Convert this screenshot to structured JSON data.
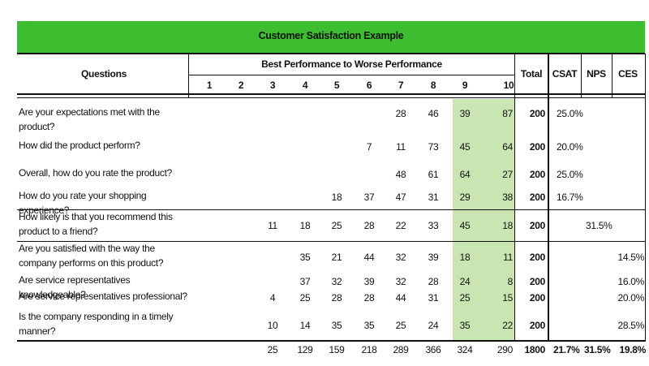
{
  "title": "Customer Satisfaction Example",
  "headers": {
    "questions": "Questions",
    "scale": "Best Performance to Worse Performance",
    "scale_numbers": [
      "1",
      "2",
      "3",
      "4",
      "5",
      "6",
      "7",
      "8",
      "9",
      "10"
    ],
    "total": "Total",
    "csat": "CSAT",
    "nps": "NPS",
    "ces": "CES"
  },
  "rows": [
    {
      "question": "Are your expectations met with the product?",
      "values": {
        "7": "28",
        "8": "46",
        "9": "39",
        "10": "87"
      },
      "total": "200",
      "csat": "25.0%",
      "nps": "",
      "ces": ""
    },
    {
      "question": "How did the product perform?",
      "values": {
        "6": "7",
        "7": "11",
        "8": "73",
        "9": "45",
        "10": "64"
      },
      "total": "200",
      "csat": "20.0%",
      "nps": "",
      "ces": ""
    },
    {
      "question": "Overall, how do you rate the product?",
      "values": {
        "7": "48",
        "8": "61",
        "9": "64",
        "10": "27"
      },
      "total": "200",
      "csat": "25.0%",
      "nps": "",
      "ces": ""
    },
    {
      "question": "How do you rate your shopping experience?",
      "values": {
        "5": "18",
        "6": "37",
        "7": "47",
        "8": "31",
        "9": "29",
        "10": "38"
      },
      "total": "200",
      "csat": "16.7%",
      "nps": "",
      "ces": ""
    },
    {
      "question": "How likely is that you recommend this product to a friend?",
      "values": {
        "3": "11",
        "4": "18",
        "5": "25",
        "6": "28",
        "7": "22",
        "8": "33",
        "9": "45",
        "10": "18"
      },
      "total": "200",
      "csat": "",
      "nps": "31.5%",
      "ces": ""
    },
    {
      "question": "Are you satisfied with the way the company performs on this product?",
      "values": {
        "4": "35",
        "5": "21",
        "6": "44",
        "7": "32",
        "8": "39",
        "9": "18",
        "10": "11"
      },
      "total": "200",
      "csat": "",
      "nps": "",
      "ces": "14.5%"
    },
    {
      "question": "Are service representatives knowledgeable?",
      "values": {
        "4": "37",
        "5": "32",
        "6": "39",
        "7": "32",
        "8": "28",
        "9": "24",
        "10": "8"
      },
      "total": "200",
      "csat": "",
      "nps": "",
      "ces": "16.0%"
    },
    {
      "question": "Are service representatives professional?",
      "values": {
        "3": "4",
        "4": "25",
        "5": "28",
        "6": "28",
        "7": "44",
        "8": "31",
        "9": "25",
        "10": "15"
      },
      "total": "200",
      "csat": "",
      "nps": "",
      "ces": "20.0%"
    },
    {
      "question": "Is the company responding in a timely manner?",
      "values": {
        "3": "10",
        "4": "14",
        "5": "35",
        "6": "35",
        "7": "25",
        "8": "24",
        "9": "35",
        "10": "22"
      },
      "total": "200",
      "csat": "",
      "nps": "",
      "ces": "28.5%"
    }
  ],
  "totals": {
    "values": {
      "3": "25",
      "4": "129",
      "5": "159",
      "6": "218",
      "7": "289",
      "8": "366",
      "9": "324",
      "10": "290"
    },
    "total": "1800",
    "csat": "21.7%",
    "nps": "31.5%",
    "ces": "19.8%"
  },
  "colors": {
    "title_bar": "#3dbd30",
    "highlight": "#c9e6b2"
  }
}
